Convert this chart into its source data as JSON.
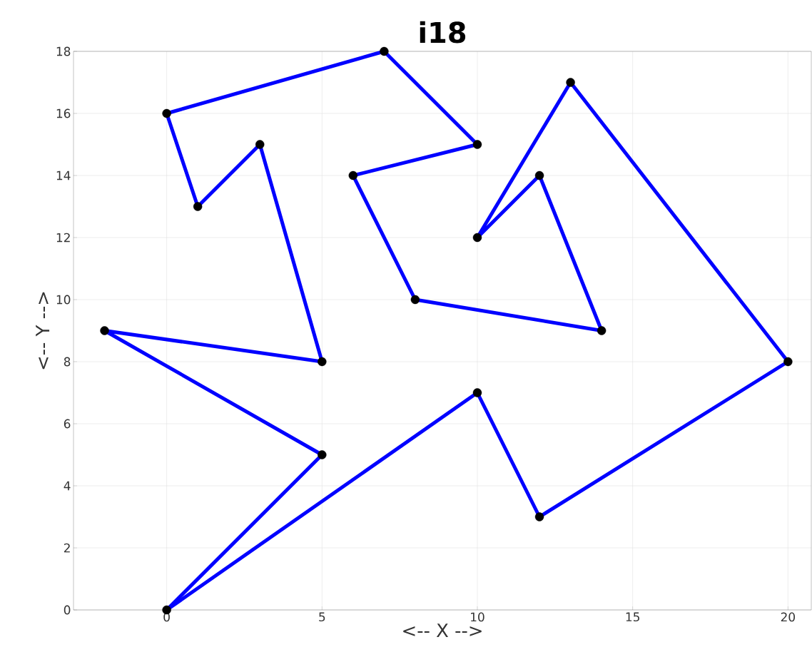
{
  "chart_data": {
    "type": "line",
    "title": "i18",
    "xlabel": "<-- X -->",
    "ylabel": "<-- Y -->",
    "xlim": [
      -3,
      20.75
    ],
    "ylim": [
      0,
      18
    ],
    "xticks": [
      0,
      5,
      10,
      15,
      20
    ],
    "yticks": [
      0,
      2,
      4,
      6,
      8,
      10,
      12,
      14,
      16,
      18
    ],
    "grid": true,
    "series": [
      {
        "type": "line",
        "color": "#0000ff",
        "x": [
          0,
          5,
          -2,
          5,
          3,
          1,
          0,
          7,
          10,
          6,
          8,
          14,
          12,
          10,
          13,
          20,
          12,
          10
        ],
        "values": [
          0,
          5,
          9,
          8,
          15,
          13,
          16,
          18,
          15,
          14,
          10,
          9,
          14,
          12,
          17,
          8,
          3,
          7
        ]
      },
      {
        "type": "line",
        "color": "#0000ff",
        "x": [
          10,
          0
        ],
        "values": [
          7,
          0
        ]
      },
      {
        "type": "scatter",
        "color": "#000000",
        "marker": "circle",
        "x": [
          0,
          5,
          -2,
          5,
          3,
          1,
          0,
          7,
          10,
          6,
          8,
          14,
          12,
          10,
          13,
          20,
          12,
          10
        ],
        "values": [
          0,
          5,
          9,
          8,
          15,
          13,
          16,
          18,
          15,
          14,
          10,
          9,
          14,
          12,
          17,
          8,
          3,
          7
        ]
      }
    ]
  }
}
